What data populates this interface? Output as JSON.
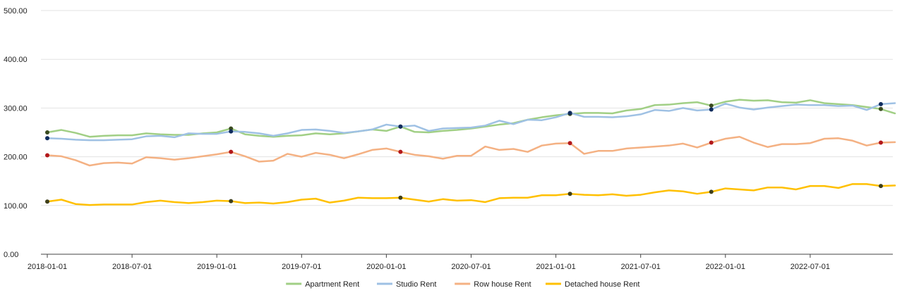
{
  "chart_data": {
    "type": "line",
    "title": "",
    "xlabel": "",
    "ylabel": "",
    "ylim": [
      0,
      500
    ],
    "yticks": [
      "0.00",
      "100.00",
      "200.00",
      "300.00",
      "400.00",
      "500.00"
    ],
    "xticks": [
      "2018-01-01",
      "2018-07-01",
      "2019-01-01",
      "2019-07-01",
      "2020-01-01",
      "2020-07-01",
      "2021-01-01",
      "2021-07-01",
      "2022-01-01",
      "2022-07-01"
    ],
    "grid": "horizontal",
    "legend": "bottom",
    "x_start": "2018-01",
    "x_end": "2022-12",
    "marker_months": [
      "2018-01",
      "2019-02",
      "2020-02",
      "2021-02",
      "2021-12",
      "2022-12"
    ],
    "series": [
      {
        "name": "Apartment Rent",
        "color": "#a1cf85",
        "values": [
          250,
          255,
          249,
          241,
          243,
          244,
          244,
          248,
          246,
          245,
          245,
          248,
          250,
          258,
          246,
          243,
          241,
          243,
          244,
          248,
          246,
          248,
          252,
          256,
          253,
          262,
          251,
          250,
          253,
          255,
          258,
          262,
          266,
          269,
          276,
          281,
          285,
          288,
          290,
          290,
          289,
          295,
          298,
          306,
          307,
          310,
          312,
          305,
          313,
          317,
          315,
          316,
          312,
          311,
          316,
          310,
          308,
          306,
          302,
          298,
          289
        ]
      },
      {
        "name": "Studio Rent",
        "color": "#9fc1e4",
        "values": [
          238,
          237,
          235,
          234,
          234,
          235,
          236,
          242,
          243,
          240,
          248,
          247,
          247,
          252,
          251,
          248,
          243,
          248,
          255,
          256,
          253,
          249,
          252,
          256,
          266,
          262,
          264,
          253,
          258,
          259,
          260,
          264,
          274,
          267,
          276,
          275,
          281,
          290,
          282,
          282,
          281,
          283,
          287,
          296,
          294,
          300,
          295,
          297,
          309,
          301,
          297,
          301,
          304,
          307,
          306,
          306,
          304,
          305,
          296,
          308,
          310
        ]
      },
      {
        "name": "Row house Rent",
        "color": "#f4b183",
        "values": [
          203,
          201,
          193,
          182,
          187,
          188,
          186,
          199,
          197,
          194,
          197,
          201,
          205,
          210,
          201,
          190,
          192,
          206,
          200,
          208,
          204,
          197,
          205,
          214,
          217,
          210,
          204,
          201,
          196,
          202,
          202,
          221,
          214,
          216,
          210,
          223,
          227,
          228,
          206,
          212,
          212,
          217,
          219,
          221,
          223,
          227,
          219,
          229,
          237,
          241,
          229,
          220,
          226,
          226,
          228,
          237,
          238,
          233,
          223,
          229,
          230
        ]
      },
      {
        "name": "Detached house Rent",
        "color": "#ffc000",
        "values": [
          108,
          112,
          103,
          101,
          102,
          102,
          102,
          107,
          110,
          107,
          105,
          107,
          110,
          109,
          105,
          106,
          104,
          107,
          112,
          114,
          106,
          110,
          116,
          115,
          115,
          116,
          112,
          108,
          113,
          110,
          111,
          107,
          115,
          116,
          116,
          121,
          121,
          124,
          122,
          121,
          123,
          120,
          122,
          127,
          131,
          129,
          124,
          128,
          135,
          133,
          131,
          137,
          137,
          133,
          140,
          140,
          136,
          144,
          144,
          140,
          141
        ]
      }
    ],
    "marker_colors": {
      "Apartment Rent": "#3a4a1f",
      "Studio Rent": "#0f2b5c",
      "Row house Rent": "#b2181b",
      "Detached house Rent": "#3f3f1a"
    }
  }
}
